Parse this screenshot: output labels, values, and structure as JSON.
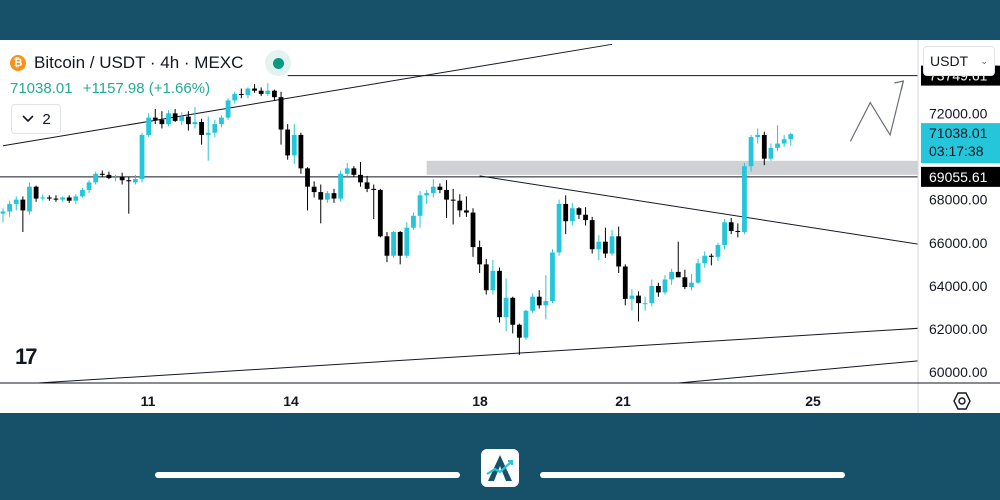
{
  "header": {
    "coin_glyph": "₿",
    "title": "Bitcoin / USDT · 4h · MEXC",
    "price": "71038.01",
    "change": "+1157.98 (+1.66%)",
    "collapse_count": "2",
    "status_color": "#089981"
  },
  "currency_selector": {
    "value": "USDT"
  },
  "colors": {
    "up": "#26c6da",
    "down": "#000000",
    "label_bg_dark": "#000000",
    "label_bg_accent": "#26c6da",
    "zone": "#c8c9cd"
  },
  "icons": [
    "bitcoin-icon",
    "chevron-down-icon",
    "tradingview-logo-icon",
    "settings-hex-icon",
    "brand-logo-icon"
  ],
  "tv_logo_text": "17",
  "brand_logo_text": "A",
  "chart_data": {
    "type": "candlestick",
    "symbol": "Bitcoin / USDT",
    "interval": "4h",
    "exchange": "MEXC",
    "y_axis": {
      "ticks": [
        72000,
        70000,
        68000,
        66000,
        64000,
        62000,
        60000
      ],
      "tick_labels": [
        "72000.00",
        "70000.00",
        "68000.00",
        "66000.00",
        "64000.00",
        "62000.00",
        "60000.00"
      ],
      "range": [
        59500,
        75400
      ]
    },
    "x_axis": {
      "ticks": [
        11,
        14,
        18,
        21,
        25
      ],
      "tick_labels": [
        "11",
        "14",
        "18",
        "21",
        "25"
      ]
    },
    "price_labels": [
      {
        "text": "73749.61",
        "value": 73749.61,
        "style": "dark"
      },
      {
        "text": "71038.01",
        "sub": "03:17:38",
        "value": 71038.01,
        "style": "accent"
      },
      {
        "text": "69055.61",
        "value": 69055.61,
        "style": "dark"
      }
    ],
    "horizontal_lines": [
      73749.61,
      69055.61
    ],
    "zone": [
      69150,
      69800
    ],
    "candles": [
      [
        67350,
        67600,
        66950,
        67450
      ],
      [
        67450,
        67950,
        67200,
        67800
      ],
      [
        67800,
        68150,
        67500,
        68000
      ],
      [
        68000,
        68150,
        66500,
        67500
      ],
      [
        67450,
        68800,
        67300,
        68600
      ],
      [
        68600,
        68650,
        67900,
        68050
      ],
      [
        68050,
        68250,
        67950,
        68100
      ],
      [
        68100,
        68200,
        67950,
        68050
      ],
      [
        68050,
        68200,
        67900,
        68000
      ],
      [
        68000,
        68150,
        67900,
        68100
      ],
      [
        68100,
        68200,
        67850,
        67950
      ],
      [
        67950,
        68250,
        67800,
        68150
      ],
      [
        68150,
        68550,
        68100,
        68450
      ],
      [
        68450,
        68900,
        68300,
        68800
      ],
      [
        68800,
        69300,
        68700,
        69200
      ],
      [
        69200,
        69350,
        69050,
        69150
      ],
      [
        69150,
        69300,
        68950,
        69000
      ],
      [
        69000,
        69150,
        68850,
        69050
      ],
      [
        69050,
        69250,
        68700,
        68900
      ],
      [
        68900,
        69050,
        67350,
        68850
      ],
      [
        68800,
        69150,
        68700,
        68950
      ],
      [
        68950,
        71100,
        68800,
        71000
      ],
      [
        71000,
        72000,
        70900,
        71800
      ],
      [
        71800,
        72200,
        71500,
        71700
      ],
      [
        71700,
        72100,
        71300,
        71500
      ],
      [
        71500,
        72150,
        71400,
        72000
      ],
      [
        72000,
        72200,
        71600,
        71650
      ],
      [
        71650,
        72050,
        71450,
        71850
      ],
      [
        71850,
        72100,
        71200,
        71500
      ],
      [
        71500,
        72300,
        71300,
        71600
      ],
      [
        71600,
        71750,
        70550,
        71000
      ],
      [
        71000,
        71850,
        69800,
        71100
      ],
      [
        71100,
        71700,
        70900,
        71500
      ],
      [
        71500,
        71900,
        71350,
        71800
      ],
      [
        71800,
        72700,
        71700,
        72600
      ],
      [
        72600,
        73000,
        72450,
        72900
      ],
      [
        72900,
        73150,
        72700,
        72850
      ],
      [
        72850,
        73200,
        72700,
        73150
      ],
      [
        73150,
        73350,
        72950,
        73050
      ],
      [
        73050,
        73200,
        72800,
        72900
      ],
      [
        72900,
        73400,
        72800,
        73050
      ],
      [
        73050,
        73100,
        72600,
        72750
      ],
      [
        72750,
        73000,
        70550,
        71250
      ],
      [
        71250,
        71500,
        69850,
        70050
      ],
      [
        70050,
        71500,
        69650,
        71000
      ],
      [
        71000,
        71100,
        69200,
        69450
      ],
      [
        69450,
        69500,
        67500,
        68600
      ],
      [
        68600,
        68850,
        68100,
        68350
      ],
      [
        68350,
        68700,
        66900,
        68000
      ],
      [
        68000,
        68400,
        67850,
        68300
      ],
      [
        68300,
        68500,
        67850,
        68050
      ],
      [
        68050,
        69350,
        67900,
        69200
      ],
      [
        69200,
        69700,
        69000,
        69450
      ],
      [
        69450,
        69550,
        69050,
        69150
      ],
      [
        69150,
        69750,
        68600,
        68800
      ],
      [
        68800,
        69100,
        68350,
        68500
      ],
      [
        68500,
        68700,
        67100,
        68450
      ],
      [
        68450,
        68500,
        66250,
        66300
      ],
      [
        66300,
        66500,
        65100,
        65400
      ],
      [
        65400,
        66550,
        65300,
        66500
      ],
      [
        66500,
        66550,
        65000,
        65400
      ],
      [
        65400,
        66950,
        65300,
        66700
      ],
      [
        66700,
        67400,
        66600,
        67250
      ],
      [
        67250,
        68400,
        66700,
        68200
      ],
      [
        68200,
        68450,
        67800,
        68300
      ],
      [
        68300,
        68950,
        68100,
        68600
      ],
      [
        68600,
        68750,
        68300,
        68450
      ],
      [
        68450,
        68900,
        67150,
        68000
      ],
      [
        68000,
        68500,
        66850,
        67950
      ],
      [
        67950,
        68250,
        67200,
        67500
      ],
      [
        67500,
        68150,
        67200,
        67400
      ],
      [
        67400,
        67600,
        65350,
        65800
      ],
      [
        65800,
        66100,
        64600,
        65000
      ],
      [
        65000,
        65250,
        63600,
        63800
      ],
      [
        63800,
        65200,
        63600,
        64700
      ],
      [
        64700,
        64850,
        62300,
        62550
      ],
      [
        62550,
        64350,
        61900,
        63450
      ],
      [
        63450,
        63500,
        61800,
        62200
      ],
      [
        62200,
        62250,
        60800,
        61600
      ],
      [
        61600,
        62900,
        61500,
        62850
      ],
      [
        62850,
        63650,
        62750,
        63500
      ],
      [
        63500,
        63800,
        62950,
        63100
      ],
      [
        63100,
        64500,
        62450,
        63300
      ],
      [
        63300,
        65700,
        63200,
        65550
      ],
      [
        65550,
        68000,
        65400,
        67800
      ],
      [
        67800,
        68200,
        66400,
        67000
      ],
      [
        67000,
        67850,
        66800,
        67600
      ],
      [
        67600,
        67650,
        67100,
        67300
      ],
      [
        67300,
        67650,
        66800,
        67050
      ],
      [
        67050,
        67200,
        65500,
        65700
      ],
      [
        65700,
        66350,
        65200,
        66050
      ],
      [
        66050,
        66700,
        65300,
        65500
      ],
      [
        65500,
        66600,
        65400,
        66300
      ],
      [
        66300,
        66750,
        64600,
        64900
      ],
      [
        64900,
        65000,
        63100,
        63400
      ],
      [
        63400,
        63850,
        62850,
        63550
      ],
      [
        63550,
        63750,
        62350,
        63200
      ],
      [
        63200,
        63500,
        62850,
        63200
      ],
      [
        63200,
        64300,
        63050,
        64000
      ],
      [
        64000,
        64150,
        63500,
        63700
      ],
      [
        63700,
        64500,
        63600,
        64300
      ],
      [
        64300,
        64800,
        64050,
        64650
      ],
      [
        64650,
        66050,
        64400,
        64400
      ],
      [
        64400,
        64750,
        63850,
        63950
      ],
      [
        63950,
        64550,
        63800,
        64150
      ],
      [
        64150,
        65250,
        64100,
        65050
      ],
      [
        65050,
        65600,
        64850,
        65400
      ],
      [
        65400,
        65500,
        64950,
        65350
      ],
      [
        65350,
        66000,
        65150,
        65900
      ],
      [
        65900,
        67100,
        65700,
        66950
      ],
      [
        66950,
        67150,
        66400,
        66550
      ],
      [
        66550,
        66900,
        66250,
        66500
      ],
      [
        66500,
        69700,
        66400,
        69550
      ],
      [
        69550,
        71000,
        69300,
        70900
      ],
      [
        70900,
        71300,
        70600,
        71000
      ],
      [
        71000,
        71150,
        69600,
        69900
      ],
      [
        69900,
        70600,
        69800,
        70400
      ],
      [
        70400,
        71450,
        70250,
        70600
      ],
      [
        70600,
        71000,
        70450,
        70800
      ],
      [
        70800,
        71100,
        70500,
        71038.01
      ]
    ],
    "trendlines": [
      {
        "name": "upper-channel",
        "from": [
          0,
          70500
        ],
        "to": [
          92,
          75200
        ]
      },
      {
        "name": "lower-channel",
        "from": [
          0,
          59400
        ],
        "to": [
          139,
          62050
        ]
      },
      {
        "name": "lower-channel-2",
        "from": [
          95,
          59300
        ],
        "to": [
          139,
          60550
        ]
      },
      {
        "name": "descending-resistance",
        "from": [
          72,
          69100
        ],
        "to": [
          139,
          65900
        ]
      }
    ],
    "projection": [
      [
        128,
        70700
      ],
      [
        131,
        72500
      ],
      [
        134,
        71000
      ],
      [
        136,
        73500
      ]
    ]
  }
}
